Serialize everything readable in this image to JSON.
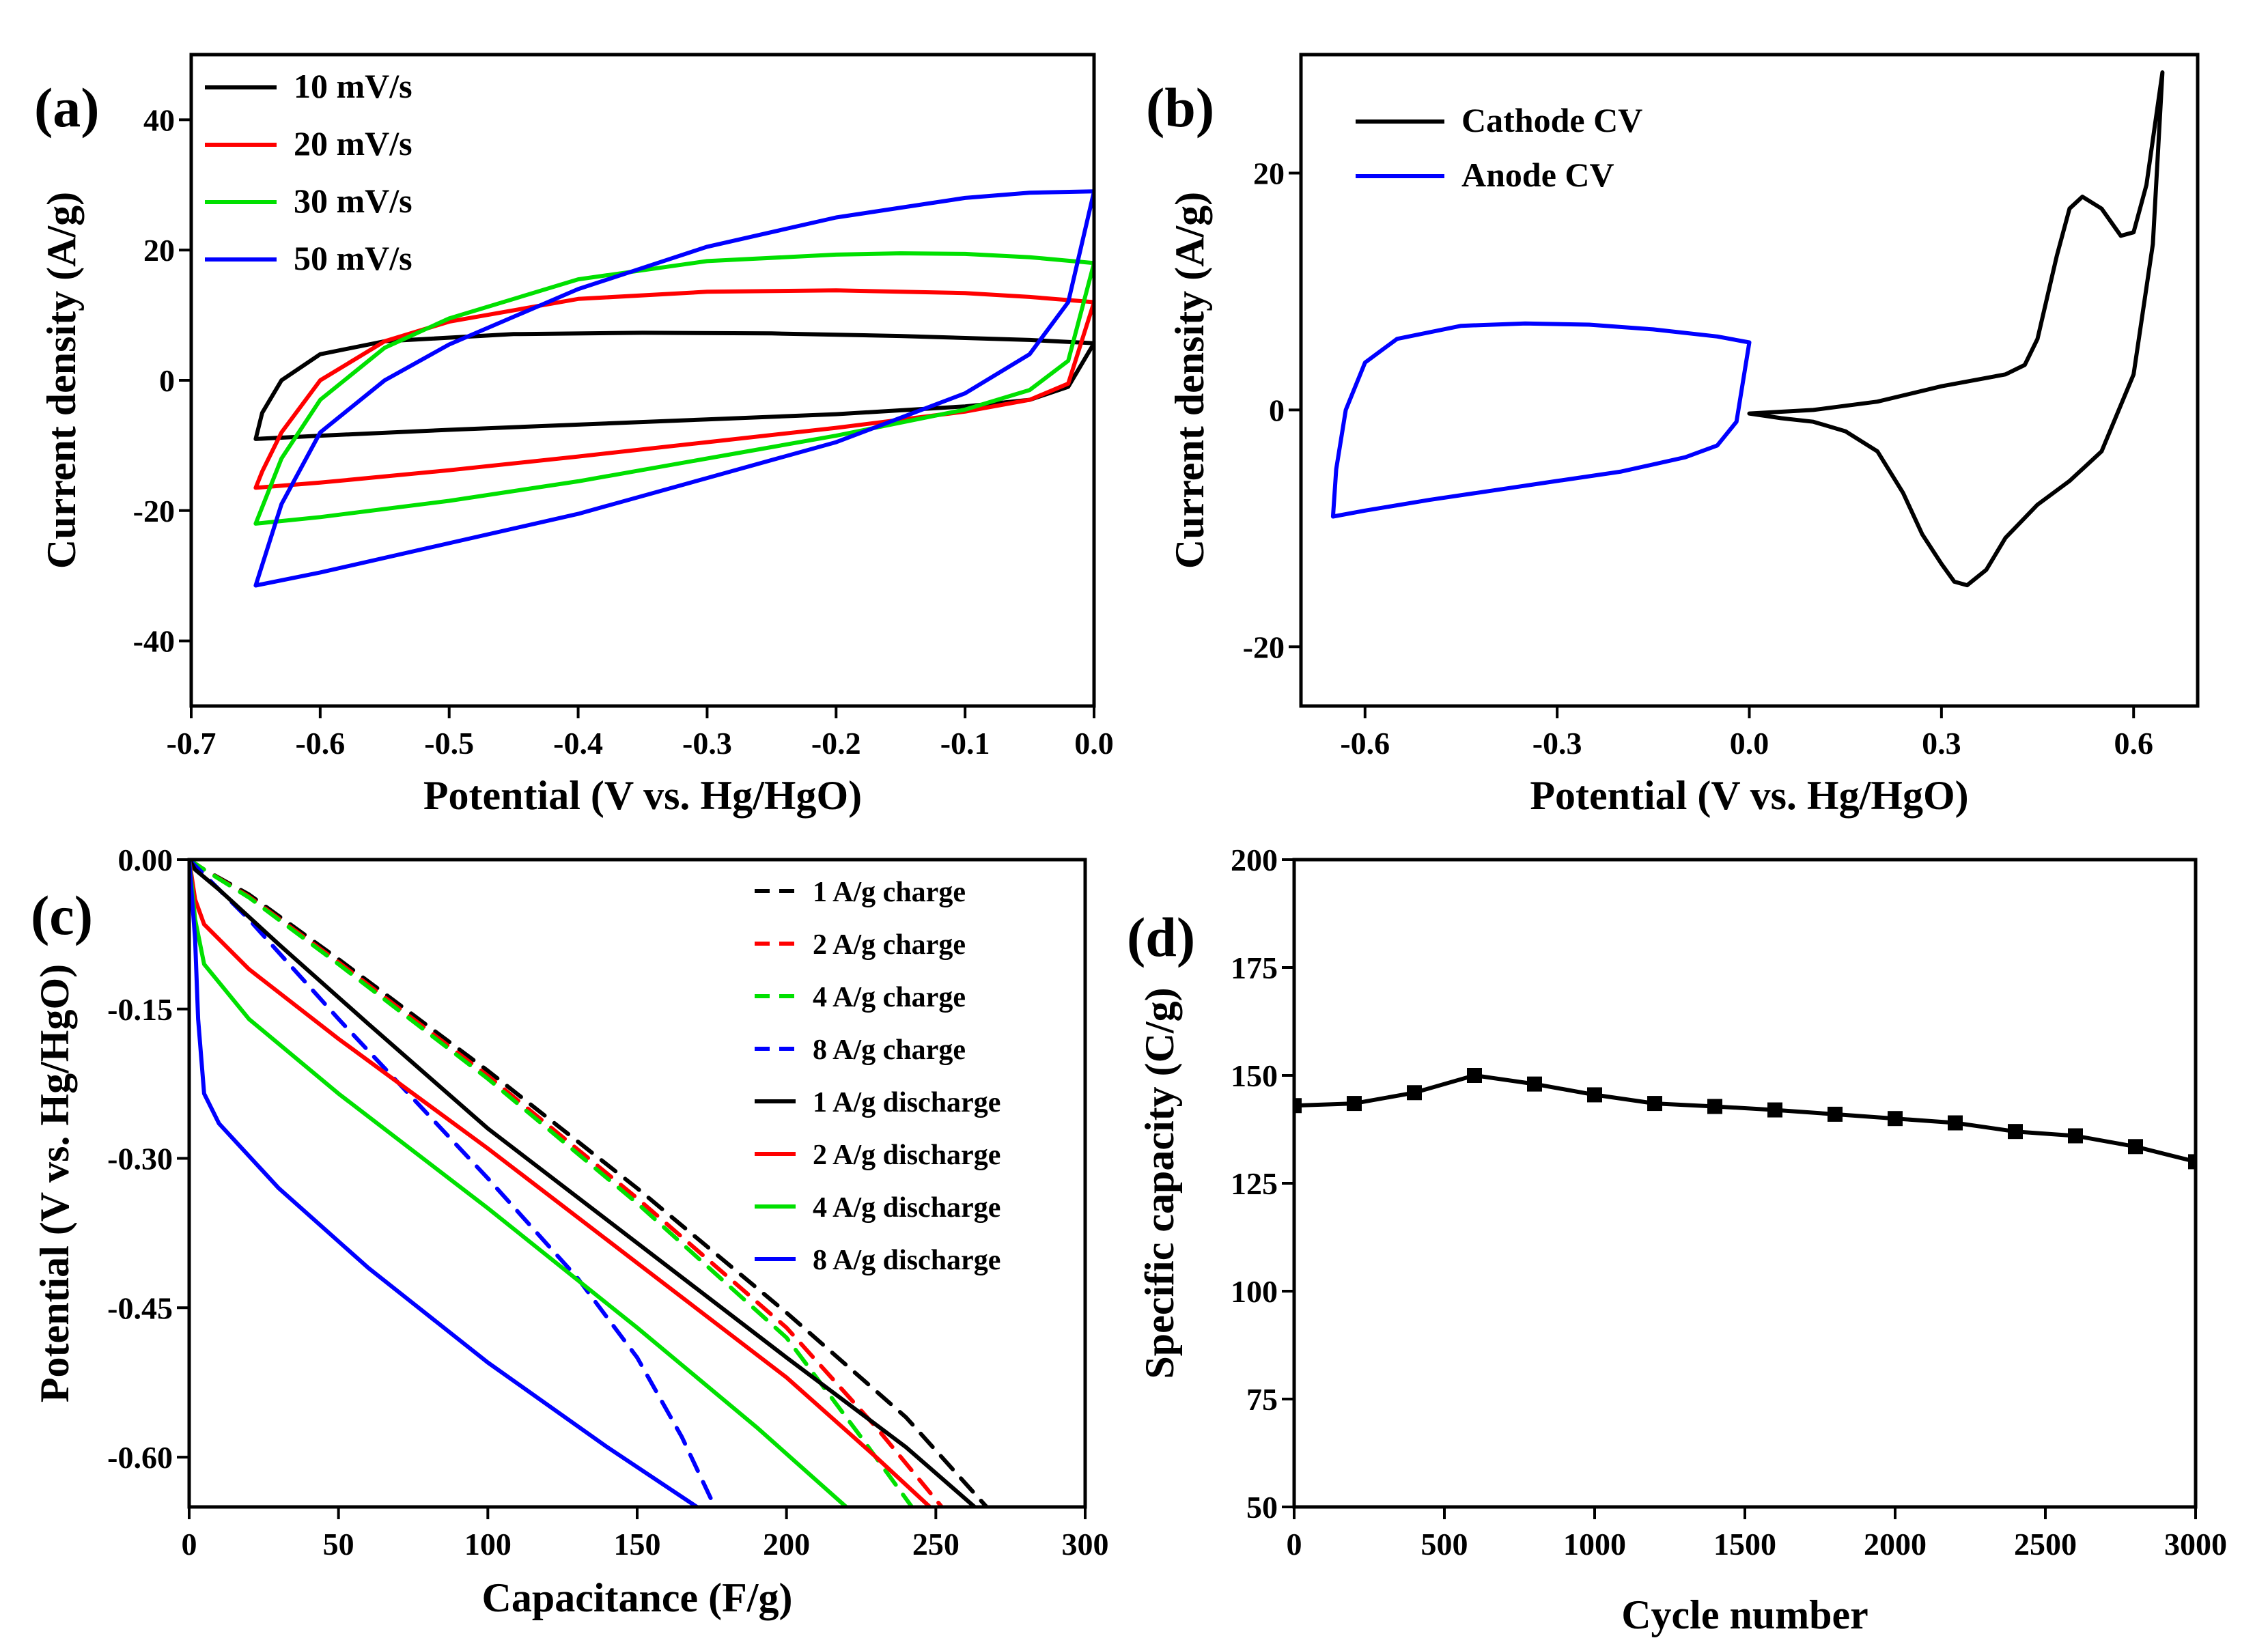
{
  "chart_data": [
    {
      "panel": "(a)",
      "type": "line",
      "title": "",
      "xlabel": "Potential (V vs. Hg/HgO)",
      "ylabel": "Current density (A/g)",
      "xlim": [
        -0.7,
        0.0
      ],
      "ylim": [
        -50,
        50
      ],
      "xticks": [
        -0.7,
        -0.6,
        -0.5,
        -0.4,
        -0.3,
        -0.2,
        -0.1,
        0.0
      ],
      "xtick_labels": [
        "-0.7",
        "-0.6",
        "-0.5",
        "-0.4",
        "-0.3",
        "-0.2",
        "-0.1",
        "0.0"
      ],
      "yticks": [
        -40,
        -20,
        0,
        20,
        40
      ],
      "ytick_labels": [
        "-40",
        "-20",
        "0",
        "20",
        "40"
      ],
      "legend_position": "top-left",
      "series": [
        {
          "name": "10 mV/s",
          "color": "#000000",
          "x": [
            0.0,
            -0.05,
            -0.15,
            -0.25,
            -0.35,
            -0.45,
            -0.55,
            -0.6,
            -0.63,
            -0.645,
            -0.65,
            -0.6,
            -0.5,
            -0.4,
            -0.3,
            -0.2,
            -0.1,
            -0.05,
            -0.02,
            0.0
          ],
          "y": [
            5.7,
            6.2,
            6.8,
            7.2,
            7.3,
            7.1,
            6.0,
            4.0,
            0.0,
            -5.0,
            -9.0,
            -8.5,
            -7.6,
            -6.8,
            -6.0,
            -5.2,
            -4.0,
            -3.0,
            -1.0,
            5.7
          ]
        },
        {
          "name": "20 mV/s",
          "color": "#ff0000",
          "x": [
            0.0,
            -0.05,
            -0.1,
            -0.2,
            -0.3,
            -0.4,
            -0.5,
            -0.55,
            -0.6,
            -0.63,
            -0.645,
            -0.65,
            -0.6,
            -0.5,
            -0.4,
            -0.3,
            -0.2,
            -0.1,
            -0.05,
            -0.02,
            0.0
          ],
          "y": [
            12.0,
            12.8,
            13.4,
            13.8,
            13.6,
            12.5,
            9.0,
            6.0,
            0.0,
            -8.0,
            -14.0,
            -16.5,
            -15.7,
            -13.8,
            -11.7,
            -9.5,
            -7.3,
            -4.8,
            -3.0,
            -0.5,
            12.0
          ]
        },
        {
          "name": "30 mV/s",
          "color": "#00e000",
          "x": [
            0.0,
            -0.05,
            -0.1,
            -0.15,
            -0.2,
            -0.3,
            -0.4,
            -0.5,
            -0.55,
            -0.6,
            -0.63,
            -0.65,
            -0.6,
            -0.5,
            -0.4,
            -0.3,
            -0.2,
            -0.1,
            -0.05,
            -0.02,
            0.0
          ],
          "y": [
            18.0,
            18.9,
            19.4,
            19.5,
            19.3,
            18.3,
            15.5,
            9.5,
            5.0,
            -3.0,
            -12.0,
            -22.0,
            -21.0,
            -18.5,
            -15.5,
            -12.0,
            -8.5,
            -4.5,
            -1.5,
            3.0,
            18.0
          ]
        },
        {
          "name": "50 mV/s",
          "color": "#0000ff",
          "x": [
            0.0,
            -0.05,
            -0.1,
            -0.2,
            -0.3,
            -0.4,
            -0.5,
            -0.55,
            -0.6,
            -0.63,
            -0.65,
            -0.6,
            -0.5,
            -0.4,
            -0.3,
            -0.2,
            -0.1,
            -0.05,
            -0.02,
            0.0
          ],
          "y": [
            29.0,
            28.8,
            28.0,
            25.0,
            20.5,
            14.0,
            5.5,
            0.0,
            -8.0,
            -19.0,
            -31.5,
            -29.5,
            -25.0,
            -20.5,
            -15.0,
            -9.5,
            -2.0,
            4.0,
            12.0,
            29.0
          ]
        }
      ]
    },
    {
      "panel": "(b)",
      "type": "line",
      "title": "",
      "xlabel": "Potential (V vs. Hg/HgO)",
      "ylabel": "Current density (A/g)",
      "xlim": [
        -0.7,
        0.7
      ],
      "ylim": [
        -25,
        30
      ],
      "xticks": [
        -0.6,
        -0.3,
        0.0,
        0.3,
        0.6
      ],
      "xtick_labels": [
        "-0.6",
        "-0.3",
        "0.0",
        "0.3",
        "0.6"
      ],
      "yticks": [
        -20,
        0,
        20
      ],
      "ytick_labels": [
        "-20",
        "0",
        "20"
      ],
      "legend_position": "top-left",
      "series": [
        {
          "name": "Cathode CV",
          "color": "#000000",
          "x": [
            0.0,
            0.1,
            0.2,
            0.3,
            0.4,
            0.43,
            0.45,
            0.48,
            0.5,
            0.52,
            0.55,
            0.58,
            0.6,
            0.62,
            0.645,
            0.63,
            0.6,
            0.55,
            0.5,
            0.45,
            0.4,
            0.37,
            0.34,
            0.32,
            0.3,
            0.27,
            0.24,
            0.2,
            0.15,
            0.1,
            0.05,
            0.0
          ],
          "y": [
            -0.3,
            0.0,
            0.7,
            2.0,
            3.0,
            3.8,
            6.0,
            13.0,
            17.0,
            18.0,
            17.0,
            14.7,
            15.0,
            19.0,
            28.5,
            14.0,
            3.0,
            -3.5,
            -6.0,
            -8.0,
            -10.8,
            -13.5,
            -14.8,
            -14.5,
            -13.0,
            -10.5,
            -7.0,
            -3.5,
            -1.8,
            -1.0,
            -0.7,
            -0.3
          ]
        },
        {
          "name": "Anode  CV",
          "color": "#0000ff",
          "x": [
            0.0,
            -0.05,
            -0.15,
            -0.25,
            -0.35,
            -0.45,
            -0.55,
            -0.6,
            -0.63,
            -0.645,
            -0.65,
            -0.6,
            -0.5,
            -0.4,
            -0.3,
            -0.2,
            -0.1,
            -0.05,
            -0.02,
            0.0
          ],
          "y": [
            5.7,
            6.2,
            6.8,
            7.2,
            7.3,
            7.1,
            6.0,
            4.0,
            0.0,
            -5.0,
            -9.0,
            -8.5,
            -7.6,
            -6.8,
            -6.0,
            -5.2,
            -4.0,
            -3.0,
            -1.0,
            5.7
          ]
        }
      ]
    },
    {
      "panel": "(c)",
      "type": "line",
      "title": "",
      "xlabel": "Capacitance (F/g)",
      "ylabel": "Potential (V vs. Hg/HgO)",
      "xlim": [
        0,
        300
      ],
      "ylim": [
        -0.65,
        0.0
      ],
      "xticks": [
        0,
        50,
        100,
        150,
        200,
        250,
        300
      ],
      "xtick_labels": [
        "0",
        "50",
        "100",
        "150",
        "200",
        "250",
        "300"
      ],
      "yticks": [
        0.0,
        -0.15,
        -0.3,
        -0.45,
        -0.6
      ],
      "ytick_labels": [
        "0.00",
        "-0.15",
        "-0.30",
        "-0.45",
        "-0.60"
      ],
      "legend_position": "top-right",
      "series": [
        {
          "name": "1 A/g charge",
          "color": "#000000",
          "dash": true,
          "x": [
            0,
            5,
            20,
            50,
            100,
            150,
            200,
            240,
            267
          ],
          "y": [
            0.0,
            -0.01,
            -0.035,
            -0.1,
            -0.212,
            -0.33,
            -0.455,
            -0.56,
            -0.65
          ]
        },
        {
          "name": "2 A/g charge",
          "color": "#ff0000",
          "dash": true,
          "x": [
            0,
            5,
            20,
            50,
            100,
            150,
            200,
            230,
            252
          ],
          "y": [
            0.0,
            -0.01,
            -0.037,
            -0.103,
            -0.217,
            -0.34,
            -0.47,
            -0.57,
            -0.65
          ]
        },
        {
          "name": "4 A/g charge",
          "color": "#00e000",
          "dash": true,
          "x": [
            0,
            5,
            20,
            50,
            100,
            150,
            200,
            225,
            242
          ],
          "y": [
            0.0,
            -0.01,
            -0.038,
            -0.105,
            -0.22,
            -0.345,
            -0.48,
            -0.58,
            -0.65
          ]
        },
        {
          "name": "8 A/g charge",
          "color": "#0000ff",
          "dash": true,
          "x": [
            0,
            5,
            20,
            50,
            100,
            130,
            150,
            165,
            176
          ],
          "y": [
            0.0,
            -0.015,
            -0.06,
            -0.16,
            -0.32,
            -0.42,
            -0.5,
            -0.58,
            -0.65
          ]
        },
        {
          "name": "1 A/g discharge",
          "color": "#000000",
          "dash": false,
          "x": [
            0,
            2,
            10,
            30,
            60,
            100,
            150,
            200,
            240,
            263
          ],
          "y": [
            0.0,
            -0.01,
            -0.03,
            -0.085,
            -0.165,
            -0.27,
            -0.385,
            -0.5,
            -0.59,
            -0.65
          ]
        },
        {
          "name": "2 A/g discharge",
          "color": "#ff0000",
          "dash": false,
          "x": [
            0,
            2,
            5,
            20,
            50,
            100,
            150,
            200,
            230,
            248
          ],
          "y": [
            0.0,
            -0.04,
            -0.065,
            -0.11,
            -0.18,
            -0.29,
            -0.405,
            -0.52,
            -0.6,
            -0.65
          ]
        },
        {
          "name": "4 A/g discharge",
          "color": "#00e000",
          "dash": false,
          "x": [
            0,
            2,
            5,
            20,
            50,
            100,
            150,
            190,
            220
          ],
          "y": [
            0.0,
            -0.06,
            -0.105,
            -0.16,
            -0.235,
            -0.35,
            -0.47,
            -0.57,
            -0.65
          ]
        },
        {
          "name": "8 A/g discharge",
          "color": "#0000ff",
          "dash": false,
          "x": [
            0,
            2,
            3,
            5,
            10,
            30,
            60,
            100,
            140,
            170
          ],
          "y": [
            0.0,
            -0.08,
            -0.16,
            -0.235,
            -0.265,
            -0.33,
            -0.41,
            -0.505,
            -0.59,
            -0.65
          ]
        }
      ]
    },
    {
      "panel": "(d)",
      "type": "line",
      "title": "",
      "xlabel": "Cycle number",
      "ylabel": "Specific capacity  (C/g)",
      "xlim": [
        0,
        3000
      ],
      "ylim": [
        50,
        200
      ],
      "xticks": [
        0,
        500,
        1000,
        1500,
        2000,
        2500,
        3000
      ],
      "xtick_labels": [
        "0",
        "500",
        "1000",
        "1500",
        "2000",
        "2500",
        "3000"
      ],
      "yticks": [
        50,
        75,
        100,
        125,
        150,
        175,
        200
      ],
      "ytick_labels": [
        "50",
        "75",
        "100",
        "125",
        "150",
        "175",
        "200"
      ],
      "series": [
        {
          "color": "#000000",
          "marker": "square",
          "x": [
            0,
            200,
            400,
            600,
            800,
            1000,
            1200,
            1400,
            1600,
            1800,
            2000,
            2200,
            2400,
            2600,
            2800,
            3000
          ],
          "y": [
            143,
            143.5,
            146,
            150,
            148,
            145.5,
            143.5,
            142.8,
            142,
            141,
            140,
            139,
            137,
            136,
            133.5,
            130
          ]
        }
      ]
    }
  ]
}
